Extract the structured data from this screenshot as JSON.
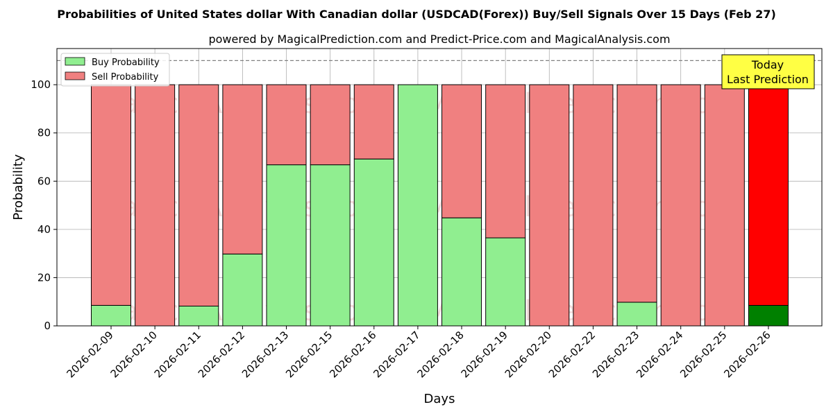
{
  "chart_data": {
    "type": "bar",
    "stacked": true,
    "title": "Probabilities of United States dollar With Canadian dollar (USDCAD(Forex)) Buy/Sell Signals Over 15 Days (Feb 27)",
    "subtitle": "powered by MagicalPrediction.com and Predict-Price.com and MagicalAnalysis.com",
    "xlabel": "Days",
    "ylabel": "Probability",
    "ylim": [
      0,
      115
    ],
    "yticks": [
      0,
      20,
      40,
      60,
      80,
      100
    ],
    "grid": true,
    "legend_position": "top-left",
    "reference_line": 110,
    "categories": [
      "2026-02-09",
      "2026-02-10",
      "2026-02-11",
      "2026-02-12",
      "2026-02-13",
      "2026-02-15",
      "2026-02-16",
      "2026-02-17",
      "2026-02-18",
      "2026-02-19",
      "2026-02-20",
      "2026-02-22",
      "2026-02-23",
      "2026-02-24",
      "2026-02-25",
      "2026-02-26"
    ],
    "series": [
      {
        "name": "Buy Probability",
        "color": "#90ee90",
        "highlight_color": "#008000",
        "values": [
          8.5,
          0,
          8.2,
          29.8,
          66.8,
          66.8,
          69.2,
          100,
          44.8,
          36.5,
          0,
          0,
          9.8,
          0,
          0,
          8.5
        ]
      },
      {
        "name": "Sell Probability",
        "color": "#f08080",
        "highlight_color": "#ff0000",
        "values": [
          91.5,
          100,
          91.8,
          70.2,
          33.2,
          33.2,
          30.8,
          0,
          55.2,
          63.5,
          100,
          100,
          90.2,
          100,
          100,
          91.5
        ]
      }
    ],
    "highlight_index": 15,
    "annotation": {
      "line1": "Today",
      "line2": "Last Prediction",
      "background": "#ffff44"
    },
    "watermarks": [
      "MagicalAnalysis.com",
      "MagicalPrediction.com"
    ]
  }
}
